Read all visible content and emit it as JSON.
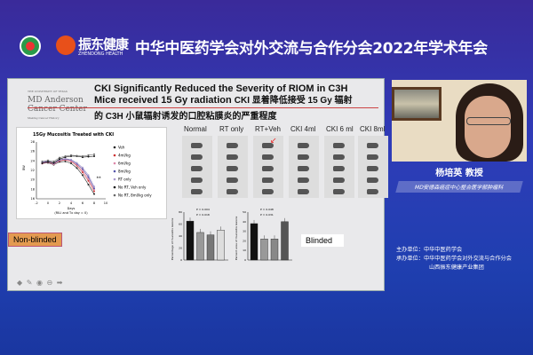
{
  "header": {
    "brand": "振东健康",
    "brand_sub": "ZHENDONG HEALTH",
    "title": "中华中医药学会对外交流与合作分会2022年学术年会"
  },
  "slide": {
    "institution": {
      "line1": "THE UNIVERSITY OF TEXAS",
      "line2": "MD Anderson",
      "line3": "Cancer Center",
      "tagline": "Making Cancer History"
    },
    "title_en1": "CKI Significantly Reduced the Severity of RIOM in C3H",
    "title_en2": "Mice received 15 Gy radiation",
    "title_cn2": "CKI 显着降低接受 15 Gy 辐射",
    "title_cn3": "的 C3H 小鼠辐射诱发的口腔粘膜炎的严重程度",
    "groups": [
      "Normal",
      "RT only",
      "RT+Veh",
      "CKI 4ml",
      "CKI 6 ml",
      "CKI 8ml"
    ],
    "non_blinded": "Non-blinded",
    "blinded": "Blinded",
    "controls": "◆ ✎ ◉ ⊖ ➡"
  },
  "chart_data": [
    {
      "type": "line",
      "title": "15Gy Mucositis Treated with CKI",
      "xlabel": "Days",
      "xlabel2": "(RILI and Tx day = 0)",
      "ylabel": "BW",
      "xlim": [
        -2,
        10
      ],
      "ylim": [
        16,
        28
      ],
      "xticks": [
        "-2",
        "0",
        "2",
        "4",
        "6",
        "8",
        "10"
      ],
      "yticks": [
        "16",
        "18",
        "20",
        "22",
        "24",
        "26",
        "28"
      ],
      "x": [
        -1,
        0,
        1,
        2,
        3,
        4,
        5,
        6,
        7,
        8
      ],
      "series": [
        {
          "name": "Veh",
          "color": "#222",
          "values": [
            23.5,
            23.6,
            23.2,
            23.8,
            23.9,
            23.5,
            22.5,
            21,
            19,
            17
          ]
        },
        {
          "name": "4ml/kg",
          "color": "#c33",
          "values": [
            23.6,
            23.8,
            23.4,
            24,
            24.2,
            23.9,
            23,
            21.6,
            19.8,
            17.6
          ]
        },
        {
          "name": "6ml/kg",
          "color": "#d8a",
          "values": [
            23.4,
            23.7,
            23.3,
            24.1,
            24.3,
            24,
            23.2,
            22,
            20.2,
            18
          ]
        },
        {
          "name": "8ml/kg",
          "color": "#55a",
          "values": [
            23.7,
            23.9,
            23.5,
            24.2,
            24.4,
            24.2,
            23.4,
            22.3,
            20.6,
            18.2
          ]
        },
        {
          "name": "RT only",
          "color": "#a9c",
          "values": [
            23.8,
            24,
            23.6,
            24.3,
            24.5,
            24.3,
            23.6,
            22.6,
            21,
            18.6
          ]
        },
        {
          "name": "No RT, Veh only",
          "color": "#111",
          "values": [
            23.5,
            23.8,
            23.6,
            24.4,
            24.8,
            25,
            25,
            24.8,
            24.9,
            25
          ]
        },
        {
          "name": "No RT, 8ml/kg only",
          "color": "#666",
          "values": [
            23.9,
            24.1,
            23.9,
            24.7,
            25,
            25.2,
            25.1,
            25,
            25.2,
            25.4
          ]
        }
      ],
      "annotation": "**"
    },
    {
      "type": "bar",
      "ylabel": "Percentage of mucositis lesions",
      "ylim": [
        0,
        80
      ],
      "yticks": [
        "0",
        "20",
        "40",
        "60",
        "80"
      ],
      "values": [
        65,
        46,
        42,
        50
      ],
      "colors": [
        "#111",
        "#999",
        "#777",
        "#ddd"
      ],
      "pvalues": [
        "P = 0.004",
        "P = 0.018"
      ]
    },
    {
      "type": "bar",
      "ylabel": "Percent area of mucositis lesions",
      "ylim": [
        0,
        50
      ],
      "yticks": [
        "0",
        "10",
        "20",
        "30",
        "40",
        "50"
      ],
      "values": [
        38,
        22,
        22,
        40
      ],
      "colors": [
        "#111",
        "#999",
        "#888",
        "#555"
      ],
      "pvalues": [
        "P = 0.048",
        "P = 0.031"
      ]
    }
  ],
  "speaker": {
    "name": "杨培英 教授",
    "affiliation": "MD安德森癌症中心整合医学部肿瘤科"
  },
  "organizers": {
    "host_label": "主办单位：",
    "host": "中华中医药学会",
    "co_label": "承办单位：",
    "co1": "中华中医药学会对外交流与合作分会",
    "co2": "山西振东健康产业集团"
  }
}
